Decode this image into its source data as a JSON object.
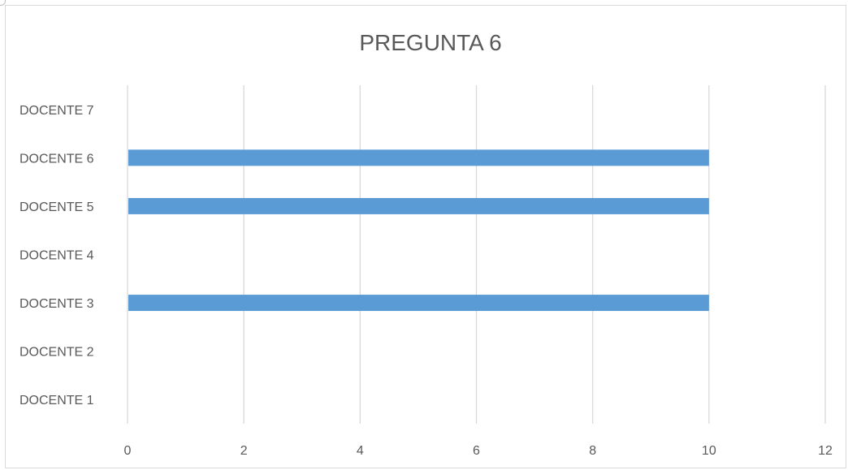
{
  "chart_data": {
    "type": "bar",
    "orientation": "horizontal",
    "title": "PREGUNTA 6",
    "categories": [
      "DOCENTE 1",
      "DOCENTE 2",
      "DOCENTE 3",
      "DOCENTE 4",
      "DOCENTE 5",
      "DOCENTE 6",
      "DOCENTE 7"
    ],
    "series": [
      {
        "values": [
          0,
          0,
          10,
          0,
          10,
          10,
          0
        ],
        "color": "#5b9bd5"
      }
    ],
    "xlabel": "",
    "ylabel": "",
    "xlim": [
      0,
      12
    ],
    "xticks": [
      "0",
      "2",
      "4",
      "6",
      "8",
      "10",
      "12"
    ],
    "grid": true,
    "legend": "none"
  }
}
